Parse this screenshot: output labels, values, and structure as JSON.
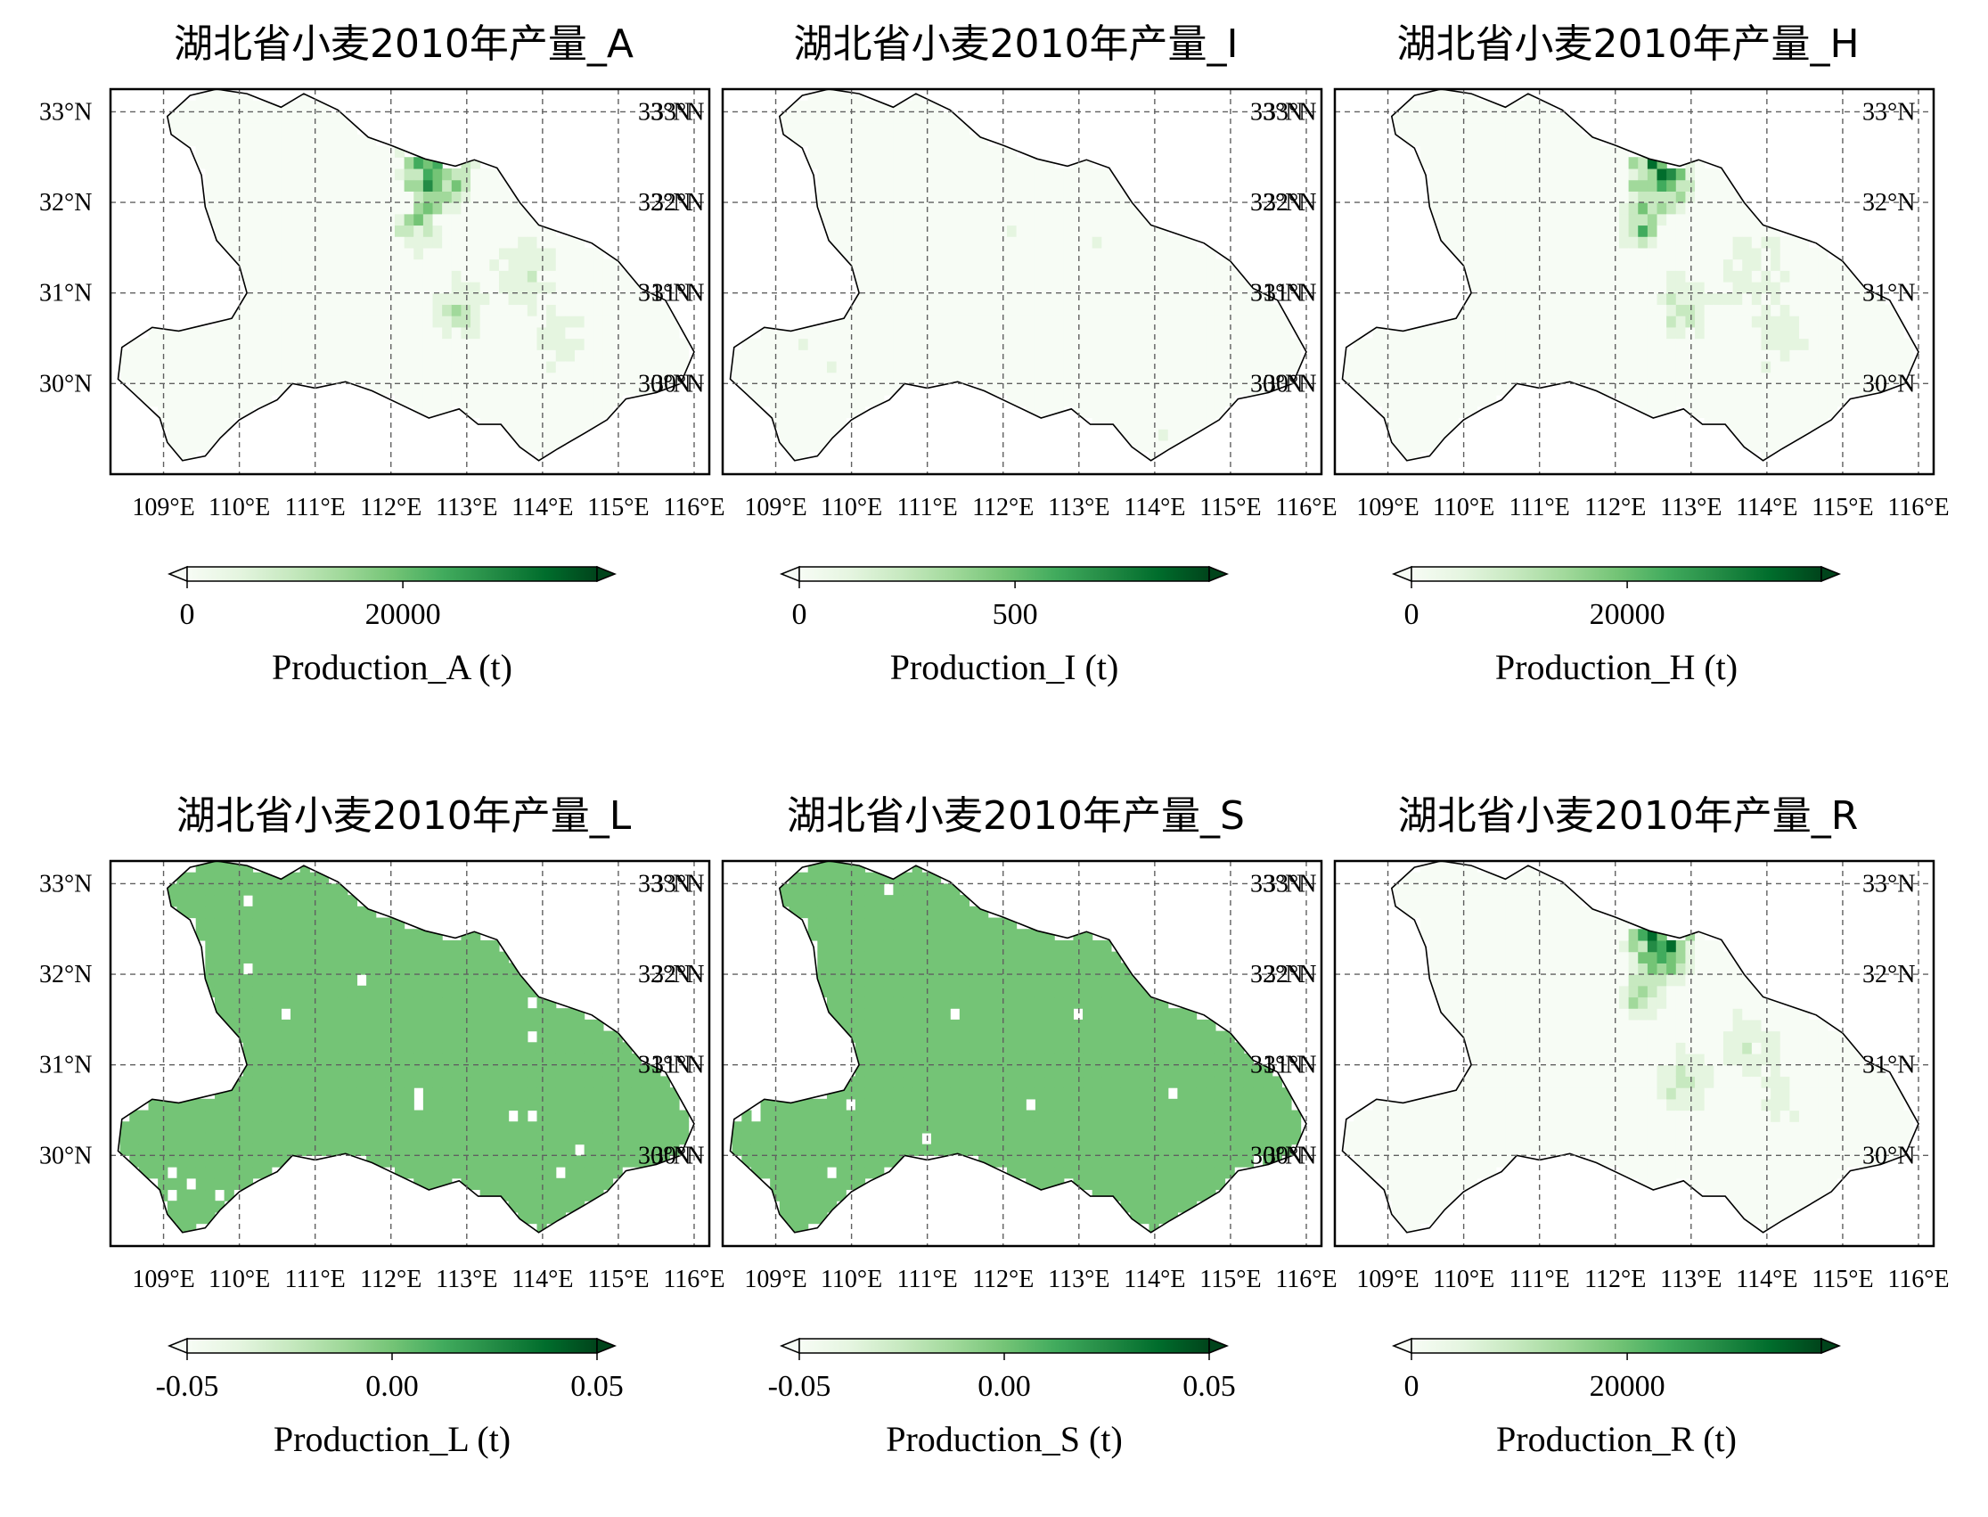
{
  "figure": {
    "colormap": [
      "#f7fcf5",
      "#e5f5e0",
      "#c7e9c0",
      "#a1d99b",
      "#74c476",
      "#41ab5d",
      "#238b45",
      "#006d2c",
      "#00441b"
    ],
    "frame_color": "#000000",
    "grid_color": "#606060",
    "outline_color": "#000000"
  },
  "panels": [
    {
      "title": "湖北省小麦2010年产量_A",
      "fill_mode": "sparse",
      "lat_labels": [
        "33°N",
        "32°N",
        "31°N",
        "30°N"
      ],
      "lon_labels": [
        "109°E",
        "110°E",
        "111°E",
        "112°E",
        "113°E",
        "114°E",
        "115°E",
        "116°E"
      ],
      "colorbar": {
        "label": "Production_A (t)",
        "min": 0,
        "max": 38000,
        "ticks": [
          0,
          20000
        ],
        "tick_labels": [
          "0",
          "20000"
        ],
        "extend": "both"
      }
    },
    {
      "title": "湖北省小麦2010年产量_I",
      "fill_mode": "near-empty",
      "lat_labels": [
        "33°N",
        "32°N",
        "31°N",
        "30°N"
      ],
      "lon_labels": [
        "109°E",
        "110°E",
        "111°E",
        "112°E",
        "113°E",
        "114°E",
        "115°E",
        "116°E"
      ],
      "colorbar": {
        "label": "Production_I (t)",
        "min": 0,
        "max": 950,
        "ticks": [
          0,
          500
        ],
        "tick_labels": [
          "0",
          "500"
        ],
        "extend": "both"
      }
    },
    {
      "title": "湖北省小麦2010年产量_H",
      "fill_mode": "sparse",
      "lat_labels": [
        "33°N",
        "32°N",
        "31°N",
        "30°N"
      ],
      "lon_labels": [
        "109°E",
        "110°E",
        "111°E",
        "112°E",
        "113°E",
        "114°E",
        "115°E",
        "116°E"
      ],
      "colorbar": {
        "label": "Production_H (t)",
        "min": 0,
        "max": 38000,
        "ticks": [
          0,
          20000
        ],
        "tick_labels": [
          "0",
          "20000"
        ],
        "extend": "both"
      }
    },
    {
      "title": "湖北省小麦2010年产量_L",
      "fill_mode": "uniform",
      "lat_labels": [
        "33°N",
        "32°N",
        "31°N",
        "30°N"
      ],
      "lon_labels": [
        "109°E",
        "110°E",
        "111°E",
        "112°E",
        "113°E",
        "114°E",
        "115°E",
        "116°E"
      ],
      "colorbar": {
        "label": "Production_L (t)",
        "min": -0.05,
        "max": 0.05,
        "ticks": [
          -0.05,
          0.0,
          0.05
        ],
        "tick_labels": [
          "-0.05",
          "0.00",
          "0.05"
        ],
        "extend": "both"
      }
    },
    {
      "title": "湖北省小麦2010年产量_S",
      "fill_mode": "uniform",
      "lat_labels": [
        "33°N",
        "32°N",
        "31°N",
        "30°N"
      ],
      "lon_labels": [
        "109°E",
        "110°E",
        "111°E",
        "112°E",
        "113°E",
        "114°E",
        "115°E",
        "116°E"
      ],
      "colorbar": {
        "label": "Production_S (t)",
        "min": -0.05,
        "max": 0.05,
        "ticks": [
          -0.05,
          0.0,
          0.05
        ],
        "tick_labels": [
          "-0.05",
          "0.00",
          "0.05"
        ],
        "extend": "both"
      }
    },
    {
      "title": "湖北省小麦2010年产量_R",
      "fill_mode": "sparse",
      "lat_labels": [
        "33°N",
        "32°N",
        "31°N",
        "30°N"
      ],
      "lon_labels": [
        "109°E",
        "110°E",
        "111°E",
        "112°E",
        "113°E",
        "114°E",
        "115°E",
        "116°E"
      ],
      "colorbar": {
        "label": "Production_R (t)",
        "min": 0,
        "max": 38000,
        "ticks": [
          0,
          20000
        ],
        "tick_labels": [
          "0",
          "20000"
        ],
        "extend": "both"
      }
    }
  ]
}
